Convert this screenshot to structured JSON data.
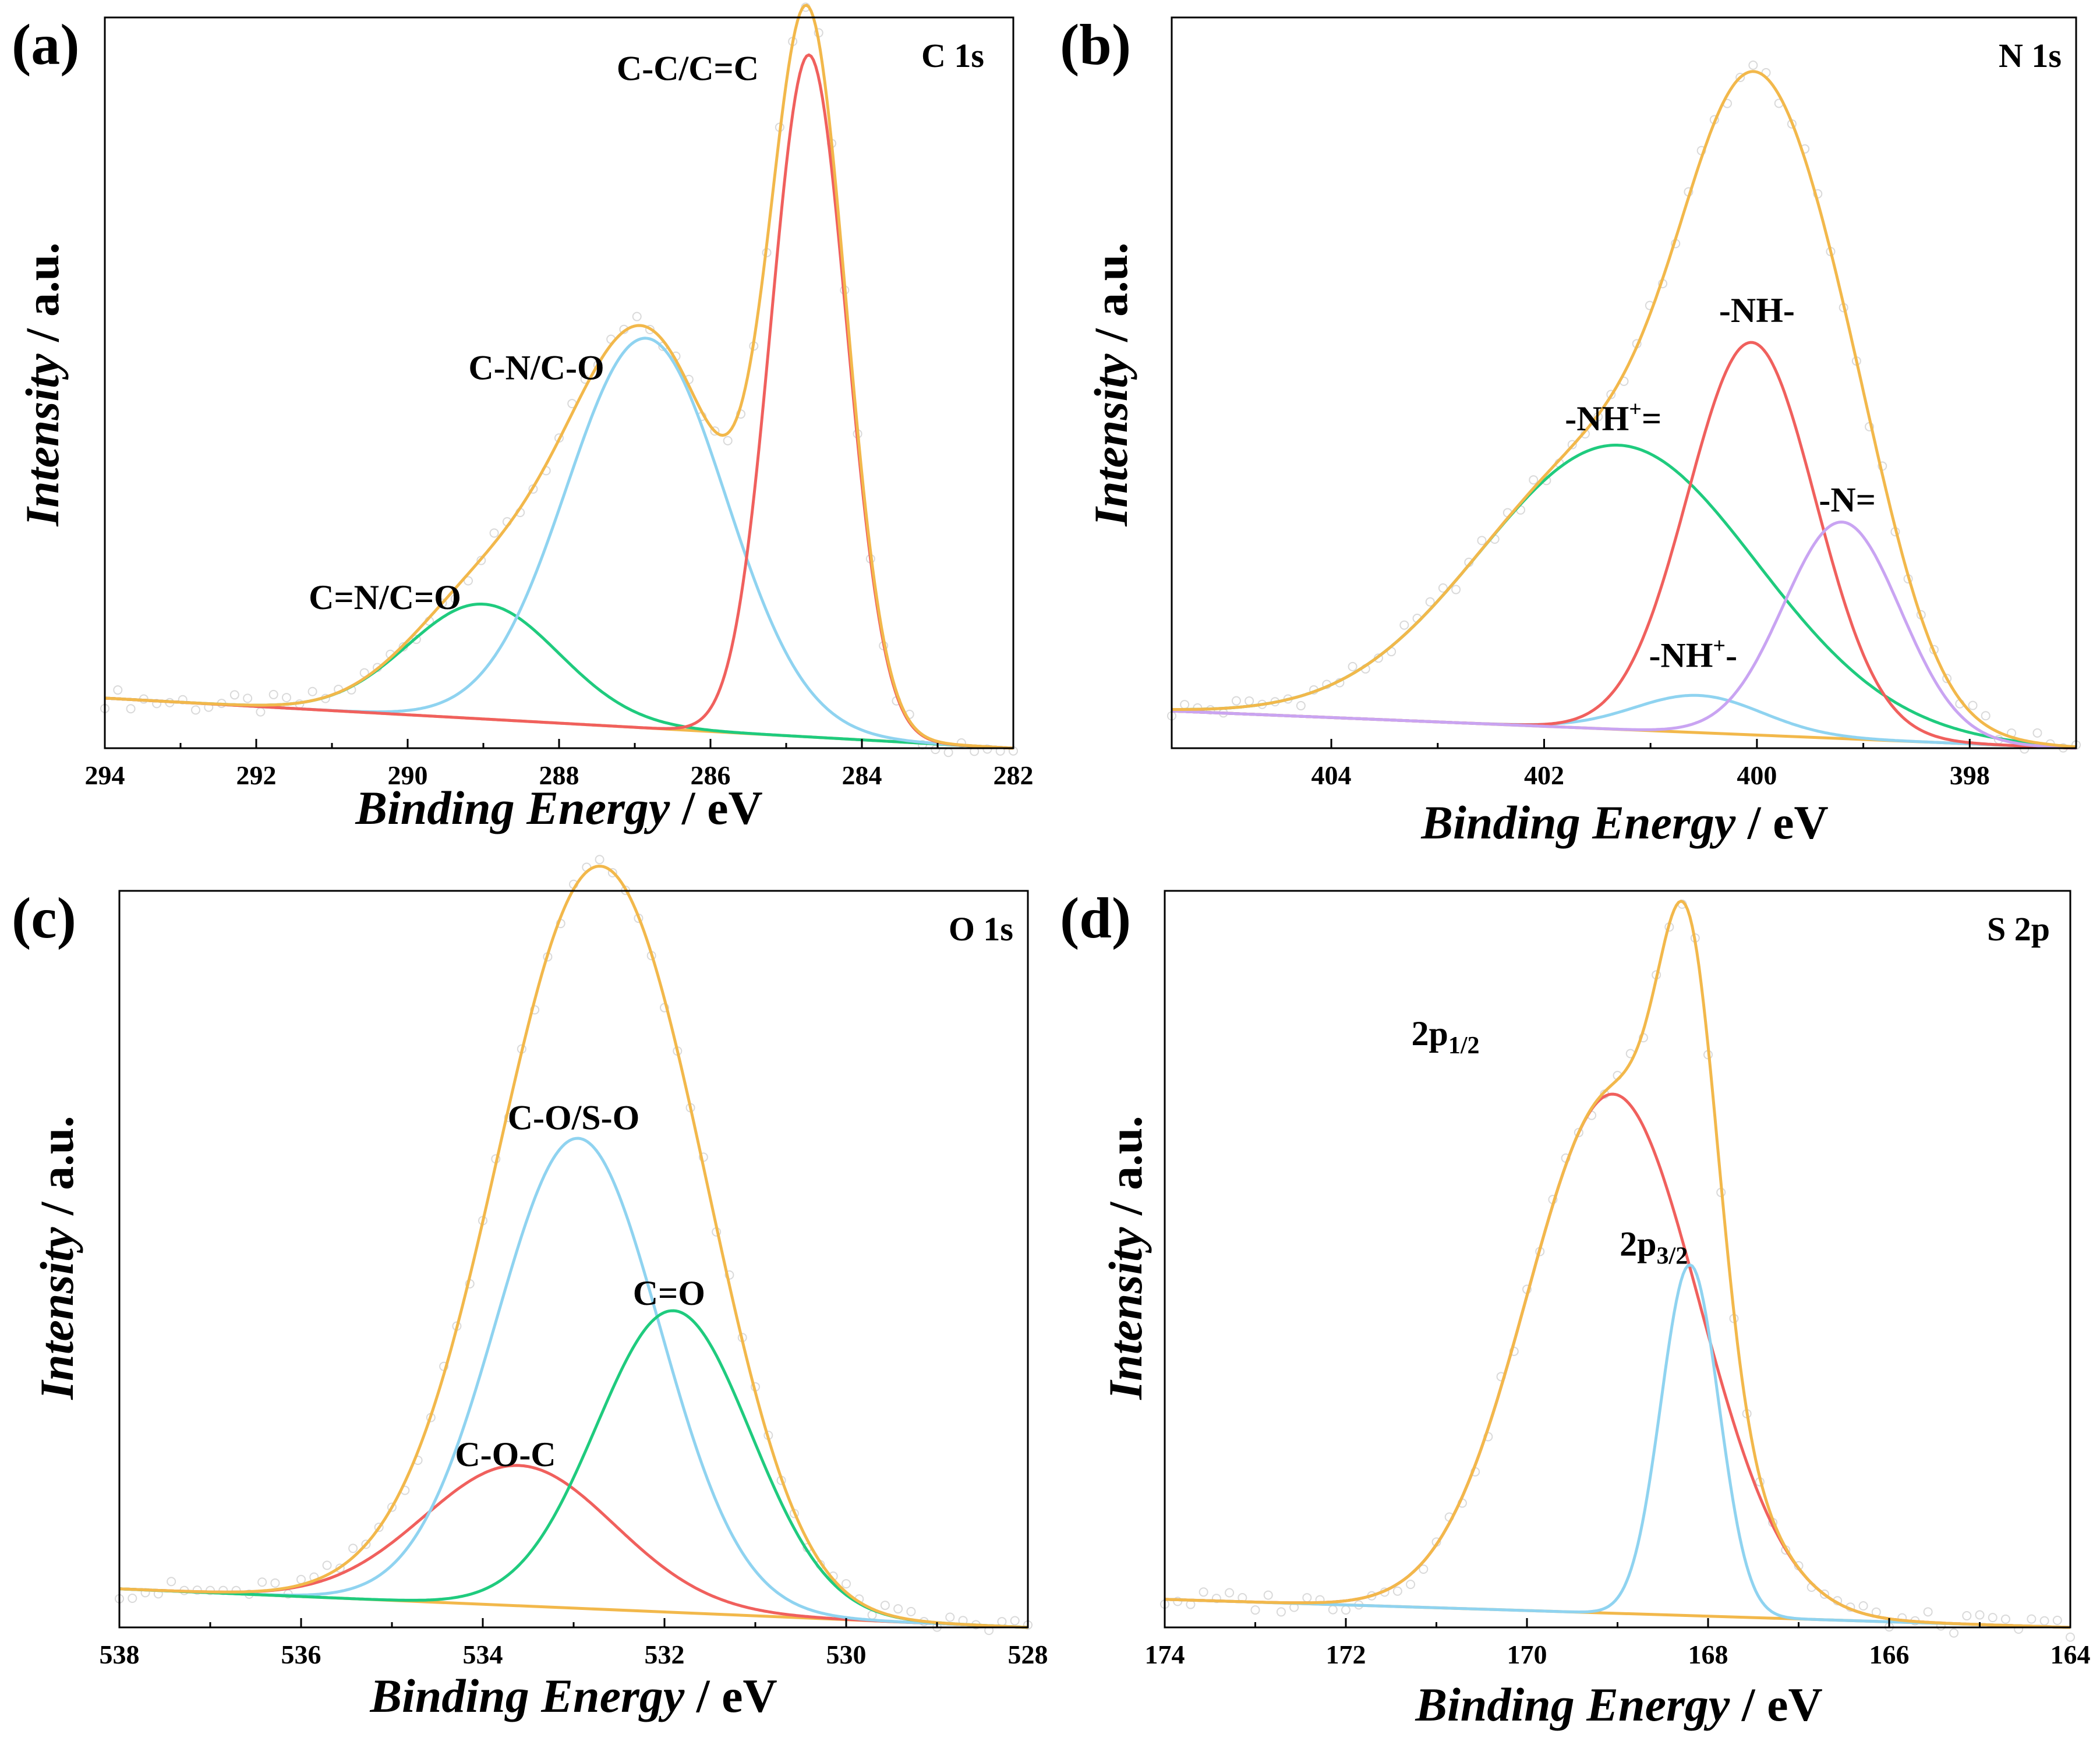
{
  "colors": {
    "envelope": "#F2B84B",
    "background": "#F2B84B",
    "red": "#F0605D",
    "blue": "#8FD3F0",
    "green": "#1FCB7E",
    "purple": "#C9A4F2",
    "raw_points": "#d4d4d4"
  },
  "axis_titles": {
    "x_italic": "Binding Energy",
    "x_unit": " / eV",
    "y_italic": "Intensity",
    "y_unit": " / a.u."
  },
  "chart_data": [
    {
      "panel_letter": "(a)",
      "type": "line",
      "title": "C 1s",
      "xlabel": "Binding Energy / eV",
      "ylabel": "Intensity / a.u.",
      "xlim": [
        294,
        282
      ],
      "ylim": [
        0,
        1.05
      ],
      "xticks": [
        294,
        292,
        290,
        288,
        286,
        284,
        282
      ],
      "tick_labels": [
        "294",
        "292",
        "290",
        "288",
        "286",
        "284",
        "282"
      ],
      "background": {
        "x": [
          294,
          282
        ],
        "y": [
          0.072,
          0.0
        ]
      },
      "components": [
        {
          "name": "C=N/C=O",
          "color": "green",
          "center": 289.0,
          "height": 0.165,
          "width": 1.0,
          "label": "C=N/C=O"
        },
        {
          "name": "C-N/C-O",
          "color": "blue",
          "center": 286.85,
          "height": 0.56,
          "width": 1.05,
          "label": "C-N/C-O"
        },
        {
          "name": "C-C/C=C",
          "color": "red",
          "center": 284.7,
          "height": 0.98,
          "width": 0.5,
          "label": "C-C/C=C"
        }
      ],
      "label_anchors": [
        {
          "text": "C=N/C=O",
          "x": 290.3,
          "y": 0.2
        },
        {
          "text": "C-N/C-O",
          "x": 288.3,
          "y": 0.53
        },
        {
          "text": "C-C/C=C",
          "x": 286.3,
          "y": 0.96
        }
      ]
    },
    {
      "panel_letter": "(b)",
      "type": "line",
      "title": "N 1s",
      "xlabel": "Binding Energy / eV",
      "ylabel": "Intensity / a.u.",
      "xlim": [
        405.5,
        397
      ],
      "ylim": [
        0,
        1.08
      ],
      "xticks": [
        404,
        402,
        400,
        398
      ],
      "tick_labels": [
        "404",
        "402",
        "400",
        "398"
      ],
      "background": {
        "x": [
          405.5,
          397
        ],
        "y": [
          0.055,
          0.0
        ]
      },
      "components": [
        {
          "name": "-NH+=",
          "color": "green",
          "center": 401.3,
          "height": 0.42,
          "width": 1.3,
          "label": "-NH+="
        },
        {
          "name": "-NH+-",
          "color": "blue",
          "center": 400.55,
          "height": 0.055,
          "width": 0.6,
          "label": "-NH+-"
        },
        {
          "name": "-NH-",
          "color": "red",
          "center": 400.05,
          "height": 0.58,
          "width": 0.6,
          "label": "-NH-"
        },
        {
          "name": "-N=",
          "color": "purple",
          "center": 399.2,
          "height": 0.32,
          "width": 0.55,
          "label": "-N="
        }
      ],
      "label_anchors": [
        {
          "text": "-NH-",
          "x": 400.0,
          "y": 0.63,
          "sup": ""
        },
        {
          "text": "-NH+=",
          "x": 401.35,
          "y": 0.47,
          "sup": "+"
        },
        {
          "text": "-N=",
          "x": 399.15,
          "y": 0.35,
          "sup": ""
        },
        {
          "text": "-NH+-",
          "x": 400.6,
          "y": 0.12,
          "sup": "+"
        }
      ]
    },
    {
      "panel_letter": "(c)",
      "type": "line",
      "title": "O 1s",
      "xlabel": "Binding Energy / eV",
      "ylabel": "Intensity / a.u.",
      "xlim": [
        538,
        528
      ],
      "ylim": [
        0,
        1.05
      ],
      "xticks": [
        538,
        536,
        534,
        532,
        530,
        528
      ],
      "tick_labels": [
        "538",
        "536",
        "534",
        "532",
        "530",
        "528"
      ],
      "background": {
        "x": [
          538,
          528
        ],
        "y": [
          0.055,
          0.0
        ]
      },
      "components": [
        {
          "name": "C-O-C",
          "color": "red",
          "center": 533.6,
          "height": 0.2,
          "width": 1.05,
          "label": "C-O-C"
        },
        {
          "name": "C-O/S-O",
          "color": "blue",
          "center": 532.95,
          "height": 0.67,
          "width": 0.9,
          "label": "C-O/S-O"
        },
        {
          "name": "C=O",
          "color": "green",
          "center": 531.9,
          "height": 0.43,
          "width": 0.85,
          "label": "C=O"
        }
      ],
      "label_anchors": [
        {
          "text": "C-O/S-O",
          "x": 533.0,
          "y": 0.71
        },
        {
          "text": "C=O",
          "x": 531.95,
          "y": 0.46
        },
        {
          "text": "C-O-C",
          "x": 533.75,
          "y": 0.23
        }
      ]
    },
    {
      "panel_letter": "(d)",
      "type": "line",
      "title": "S 2p",
      "xlabel": "Binding Energy / eV",
      "ylabel": "Intensity / a.u.",
      "xlim": [
        174,
        164
      ],
      "ylim": [
        0,
        1.05
      ],
      "xticks": [
        174,
        172,
        170,
        168,
        166,
        164
      ],
      "tick_labels": [
        "174",
        "172",
        "170",
        "168",
        "166",
        "164"
      ],
      "background": {
        "x": [
          174,
          164
        ],
        "y": [
          0.04,
          0.0
        ]
      },
      "components": [
        {
          "name": "2p1/2",
          "color": "red",
          "center": 169.05,
          "height": 0.74,
          "width": 0.95,
          "label": "2p1/2"
        },
        {
          "name": "2p3/2",
          "color": "blue",
          "center": 168.2,
          "height": 0.5,
          "width": 0.32,
          "label": "2p3/2"
        }
      ],
      "label_anchors": [
        {
          "text": "2p",
          "sub": "1/2",
          "x": 170.9,
          "y": 0.83
        },
        {
          "text": "2p",
          "sub": "3/2",
          "x": 168.6,
          "y": 0.53
        }
      ]
    }
  ]
}
